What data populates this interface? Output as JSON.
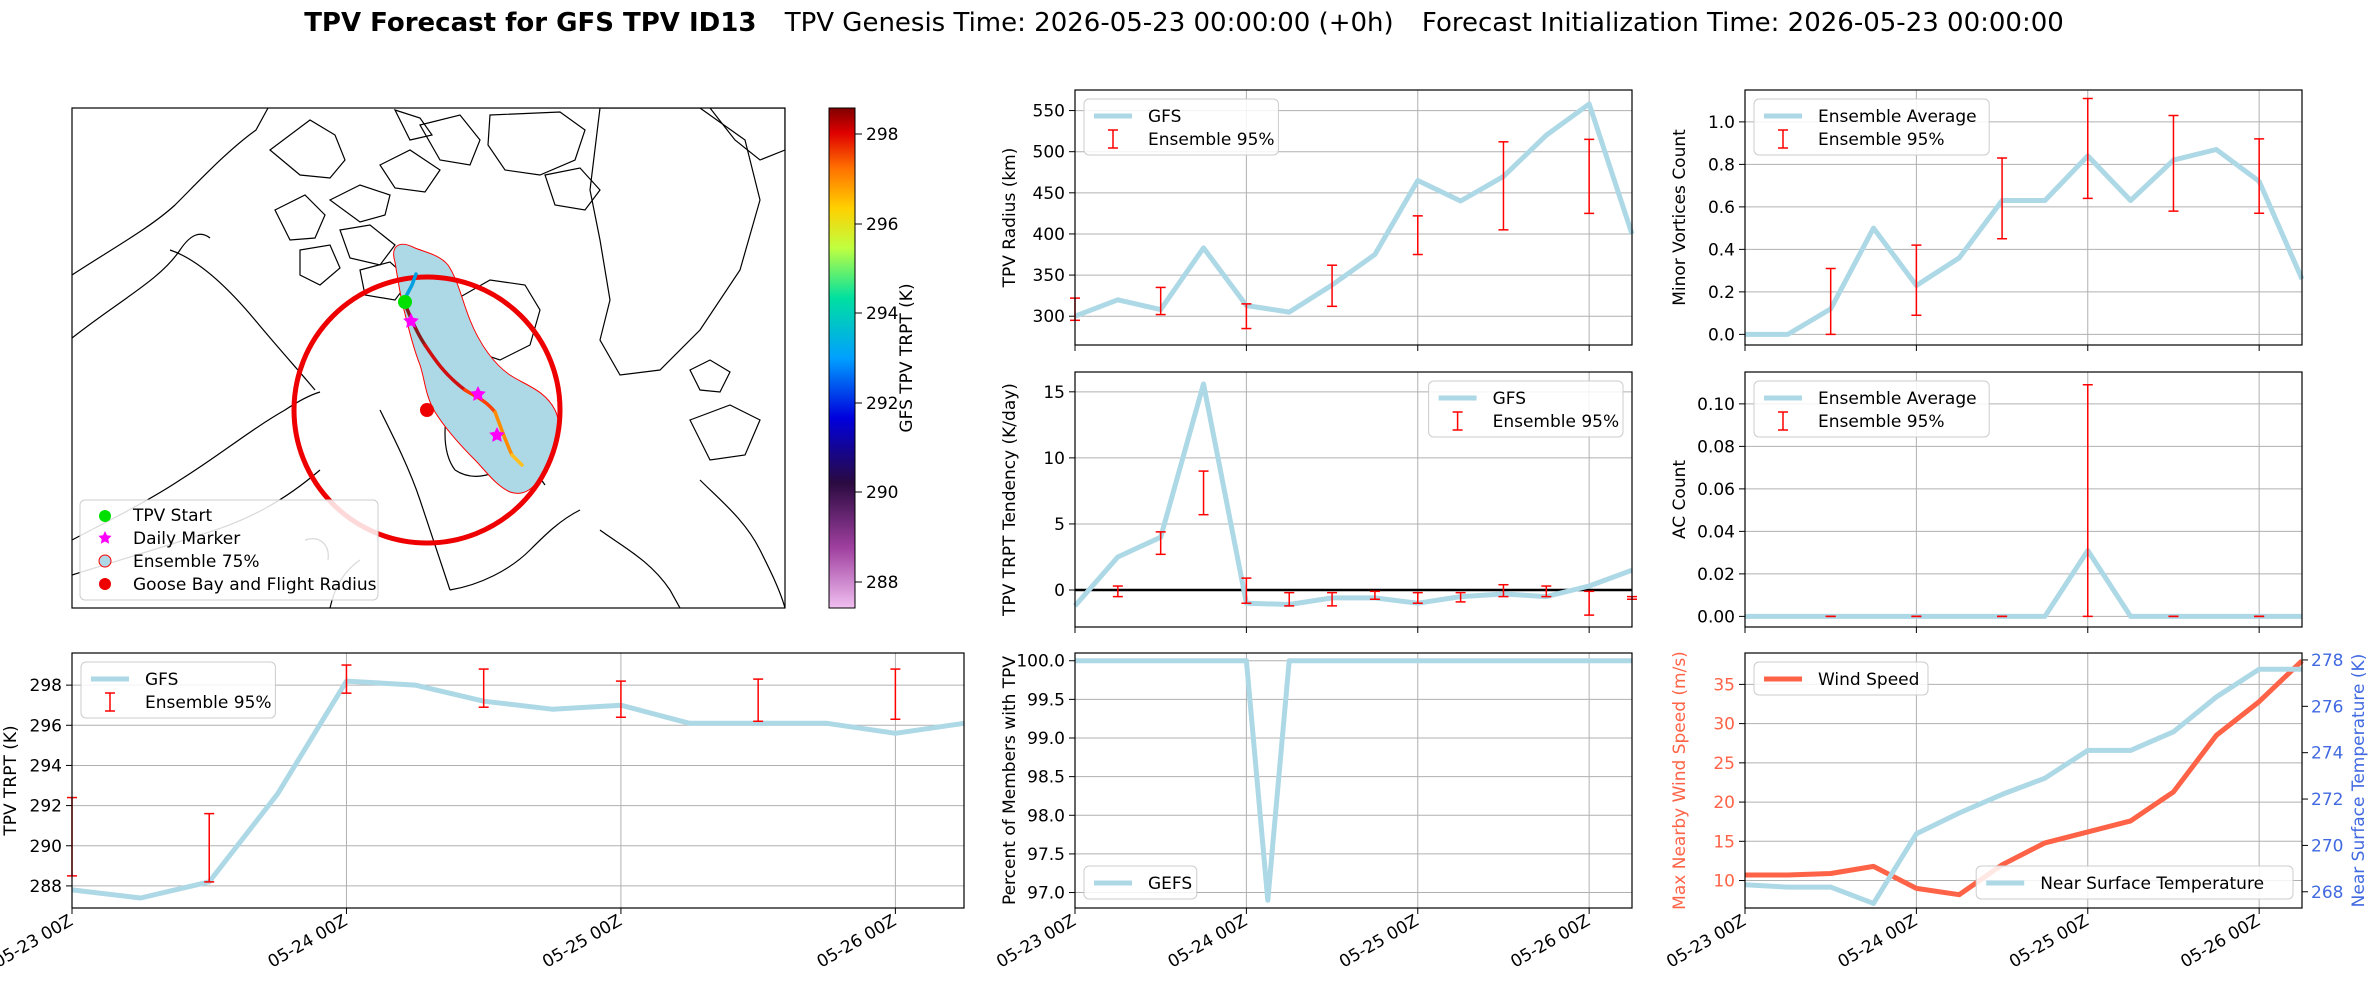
{
  "title": {
    "main": "TPV Forecast for GFS TPV ID13",
    "genesis": "TPV Genesis Time: 2026-05-23 00:00:00 (+0h)",
    "init": "Forecast Initialization Time: 2026-05-23 00:00:00"
  },
  "colors": {
    "gfs_line": "#add8e6",
    "errorbar": "#ff0000",
    "wind": "#ff6347",
    "temp_axis": "#4169e1"
  },
  "map": {
    "colorbar_label": "GFS TPV TRPT (K)",
    "colorbar_ticks": [
      "298",
      "296",
      "294",
      "292",
      "290",
      "288"
    ],
    "legend": [
      "TPV Start",
      "Daily Marker",
      "Ensemble 75%",
      "Goose Bay and Flight Radius"
    ]
  },
  "x_ticks": [
    "05-23 00Z",
    "05-24 00Z",
    "05-25 00Z",
    "05-26 00Z"
  ],
  "chart_data": [
    {
      "id": "radius",
      "type": "line",
      "ylabel": "TPV Radius (km)",
      "ylim": [
        265,
        575
      ],
      "yticks": [
        300,
        350,
        400,
        450,
        500,
        550
      ],
      "xlim": [
        0,
        78
      ],
      "x": [
        0,
        6,
        12,
        18,
        24,
        30,
        36,
        42,
        48,
        54,
        60,
        66,
        72,
        78
      ],
      "series": [
        {
          "name": "GFS",
          "values": [
            300,
            320,
            308,
            383,
            313,
            305,
            338,
            375,
            465,
            440,
            470,
            520,
            558,
            400
          ]
        }
      ],
      "errorbars": {
        "name": "Ensemble 95%",
        "x": [
          0,
          12,
          24,
          36,
          48,
          60,
          72
        ],
        "low": [
          295,
          302,
          285,
          312,
          375,
          405,
          425
        ],
        "high": [
          322,
          335,
          315,
          362,
          422,
          512,
          515
        ]
      },
      "legend": "upper left"
    },
    {
      "id": "minor",
      "type": "line",
      "ylabel": "Minor Vortices Count",
      "ylim": [
        -0.05,
        1.15
      ],
      "yticks": [
        "0.0",
        "0.2",
        "0.4",
        "0.6",
        "0.8",
        "1.0"
      ],
      "xlim": [
        0,
        78
      ],
      "x": [
        0,
        6,
        12,
        18,
        24,
        30,
        36,
        42,
        48,
        54,
        60,
        66,
        72,
        78
      ],
      "series": [
        {
          "name": "Ensemble Average",
          "values": [
            0.0,
            0.0,
            0.12,
            0.5,
            0.23,
            0.36,
            0.63,
            0.63,
            0.84,
            0.63,
            0.82,
            0.87,
            0.72,
            0.26
          ]
        }
      ],
      "errorbars": {
        "name": "Ensemble 95%",
        "x": [
          12,
          24,
          36,
          48,
          60,
          72
        ],
        "low": [
          0.0,
          0.09,
          0.45,
          0.64,
          0.58,
          0.57
        ],
        "high": [
          0.31,
          0.42,
          0.83,
          1.11,
          1.03,
          0.92
        ]
      },
      "legend": "upper left"
    },
    {
      "id": "tendency",
      "type": "line",
      "ylabel": "TPV TRPT Tendency (K/day)",
      "ylim": [
        -2.8,
        16.5
      ],
      "yticks": [
        0,
        5,
        10,
        15
      ],
      "xlim": [
        0,
        78
      ],
      "x": [
        0,
        6,
        12,
        18,
        24,
        30,
        36,
        42,
        48,
        54,
        60,
        66,
        72,
        78
      ],
      "series": [
        {
          "name": "GFS",
          "values": [
            -1.2,
            2.5,
            4.0,
            15.6,
            -1.0,
            -1.1,
            -0.6,
            -0.6,
            -1.0,
            -0.5,
            -0.3,
            -0.5,
            0.3,
            1.5
          ]
        }
      ],
      "zero_line": true,
      "errorbars": {
        "name": "Ensemble 95%",
        "x": [
          6,
          12,
          18,
          24,
          30,
          36,
          42,
          48,
          54,
          60,
          66,
          72,
          78
        ],
        "low": [
          -0.5,
          2.7,
          5.7,
          -1.0,
          -1.2,
          -1.2,
          -0.7,
          -1.0,
          -0.9,
          -0.5,
          -0.5,
          -1.9,
          -0.7
        ],
        "high": [
          0.3,
          4.4,
          9.0,
          0.9,
          -0.2,
          -0.2,
          -0.1,
          -0.2,
          -0.2,
          0.4,
          0.3,
          -0.1,
          -0.5
        ]
      },
      "legend": "upper right"
    },
    {
      "id": "ac",
      "type": "line",
      "ylabel": "AC Count",
      "ylim": [
        -0.005,
        0.115
      ],
      "yticks": [
        "0.00",
        "0.02",
        "0.04",
        "0.06",
        "0.08",
        "0.10"
      ],
      "xlim": [
        0,
        78
      ],
      "x": [
        0,
        6,
        12,
        18,
        24,
        30,
        36,
        42,
        48,
        54,
        60,
        66,
        72,
        78
      ],
      "series": [
        {
          "name": "Ensemble Average",
          "values": [
            0,
            0,
            0,
            0,
            0,
            0,
            0,
            0,
            0.031,
            0,
            0,
            0,
            0,
            0
          ]
        }
      ],
      "errorbars": {
        "name": "Ensemble 95%",
        "x": [
          12,
          24,
          36,
          48,
          60,
          72
        ],
        "low": [
          0,
          0,
          0,
          0,
          0,
          0
        ],
        "high": [
          0,
          0,
          0,
          0.109,
          0,
          0
        ]
      },
      "legend": "upper left"
    },
    {
      "id": "trpt",
      "type": "line",
      "ylabel": "TPV TRPT (K)",
      "ylim": [
        286.9,
        299.6
      ],
      "yticks": [
        288,
        290,
        292,
        294,
        296,
        298
      ],
      "xlim": [
        0,
        78
      ],
      "x": [
        0,
        6,
        12,
        18,
        24,
        30,
        36,
        42,
        48,
        54,
        60,
        66,
        72,
        78
      ],
      "series": [
        {
          "name": "GFS",
          "values": [
            287.8,
            287.4,
            288.2,
            292.6,
            298.2,
            298.0,
            297.2,
            296.8,
            297.0,
            296.1,
            296.1,
            296.1,
            295.6,
            296.1
          ]
        }
      ],
      "errorbars": {
        "name": "Ensemble 95%",
        "x": [
          0,
          12,
          24,
          36,
          48,
          60,
          72
        ],
        "low": [
          288.5,
          288.2,
          297.6,
          296.9,
          296.4,
          296.2,
          296.3
        ],
        "high": [
          292.4,
          291.6,
          299.0,
          298.8,
          298.2,
          298.3,
          298.8
        ]
      },
      "legend": "upper left"
    },
    {
      "id": "percent",
      "type": "line",
      "ylabel": "Percent of Members with TPV",
      "ylim": [
        96.8,
        100.1
      ],
      "yticks": [
        "97.0",
        "97.5",
        "98.0",
        "98.5",
        "99.0",
        "99.5",
        "100.0"
      ],
      "xlim": [
        0,
        78
      ],
      "x": [
        0,
        6,
        12,
        18,
        24,
        27,
        30,
        36,
        42,
        48,
        54,
        60,
        66,
        72,
        78
      ],
      "series": [
        {
          "name": "GEFS",
          "values": [
            100,
            100,
            100,
            100,
            100,
            96.9,
            100,
            100,
            100,
            100,
            100,
            100,
            100,
            100,
            100
          ]
        }
      ],
      "legend": "lower left"
    },
    {
      "id": "wind",
      "type": "line",
      "ylabel": "Max Nearby Wind Speed (m/s)",
      "ylabel_right": "Near Surface Temperature (K)",
      "ylim": [
        6.5,
        39
      ],
      "yticks": [
        10,
        15,
        20,
        25,
        30,
        35
      ],
      "ylim_right": [
        267.3,
        278.3
      ],
      "yticks_right": [
        268,
        270,
        272,
        274,
        276,
        278
      ],
      "xlim": [
        0,
        78
      ],
      "x": [
        0,
        6,
        12,
        18,
        24,
        30,
        36,
        42,
        48,
        54,
        60,
        66,
        72,
        78
      ],
      "series": [
        {
          "name": "Wind Speed",
          "values": [
            10.7,
            10.7,
            10.9,
            11.8,
            9.0,
            8.2,
            12.0,
            14.8,
            16.2,
            17.6,
            21.3,
            28.5,
            32.8,
            38.0
          ],
          "axis": "left"
        },
        {
          "name": "Near Surface Temperature",
          "values": [
            268.3,
            268.2,
            268.2,
            267.5,
            270.5,
            271.4,
            272.2,
            272.9,
            274.1,
            274.1,
            274.9,
            276.4,
            277.6,
            277.6
          ],
          "axis": "right"
        }
      ],
      "legend": "split"
    }
  ]
}
